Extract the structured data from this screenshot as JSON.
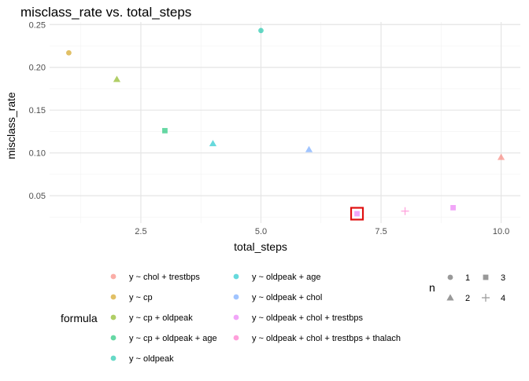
{
  "chart_data": {
    "type": "scatter",
    "title": "misclass_rate vs. total_steps",
    "xlabel": "total_steps",
    "ylabel": "misclass_rate",
    "xlim": [
      0.6,
      10.4
    ],
    "ylim": [
      0.018,
      0.253
    ],
    "xticks": [
      2.5,
      5.0,
      7.5,
      10.0
    ],
    "xtick_labels": [
      "2.5",
      "5.0",
      "7.5",
      "10.0"
    ],
    "yticks": [
      0.05,
      0.1,
      0.15,
      0.2,
      0.25
    ],
    "ytick_labels": [
      "0.05",
      "0.10",
      "0.15",
      "0.20",
      "0.25"
    ],
    "grid": true,
    "points": [
      {
        "x": 1,
        "y": 0.217,
        "formula": "y ~ cp",
        "n": 1
      },
      {
        "x": 2,
        "y": 0.186,
        "formula": "y ~ cp + oldpeak",
        "n": 2
      },
      {
        "x": 3,
        "y": 0.126,
        "formula": "y ~ cp + oldpeak + age",
        "n": 3
      },
      {
        "x": 4,
        "y": 0.111,
        "formula": "y ~ oldpeak + age",
        "n": 2
      },
      {
        "x": 5,
        "y": 0.243,
        "formula": "y ~ oldpeak",
        "n": 1
      },
      {
        "x": 6,
        "y": 0.104,
        "formula": "y ~ oldpeak + chol",
        "n": 2
      },
      {
        "x": 7,
        "y": 0.029,
        "formula": "y ~ oldpeak + chol + trestbps",
        "n": 3,
        "highlighted": true
      },
      {
        "x": 8,
        "y": 0.032,
        "formula": "y ~ oldpeak + chol + trestbps + thalach",
        "n": 4
      },
      {
        "x": 9,
        "y": 0.036,
        "formula": "y ~ oldpeak + chol + trestbps",
        "n": 3
      },
      {
        "x": 10,
        "y": 0.095,
        "formula": "y ~ chol + trestbps",
        "n": 2
      }
    ],
    "legend": {
      "placement": "bottom",
      "color_title": "formula",
      "color_entries": [
        {
          "label": "y ~ chol + trestbps",
          "color": "#F8766D"
        },
        {
          "label": "y ~ cp",
          "color": "#CD9600"
        },
        {
          "label": "y ~ cp + oldpeak",
          "color": "#7CAE00"
        },
        {
          "label": "y ~ cp + oldpeak + age",
          "color": "#00BE67"
        },
        {
          "label": "y ~ oldpeak",
          "color": "#00BFA0"
        },
        {
          "label": "y ~ oldpeak + age",
          "color": "#00BFC4"
        },
        {
          "label": "y ~ oldpeak + chol",
          "color": "#619CFF"
        },
        {
          "label": "y ~ oldpeak + chol + trestbps",
          "color": "#E76BF3"
        },
        {
          "label": "y ~ oldpeak + chol + trestbps + thalach",
          "color": "#FF61C3"
        }
      ],
      "shape_title": "n",
      "shape_entries": [
        {
          "label": "1",
          "shape": "circle"
        },
        {
          "label": "2",
          "shape": "triangle"
        },
        {
          "label": "3",
          "shape": "square"
        },
        {
          "label": "4",
          "shape": "plus"
        }
      ]
    },
    "highlight_color": "#E01010"
  }
}
